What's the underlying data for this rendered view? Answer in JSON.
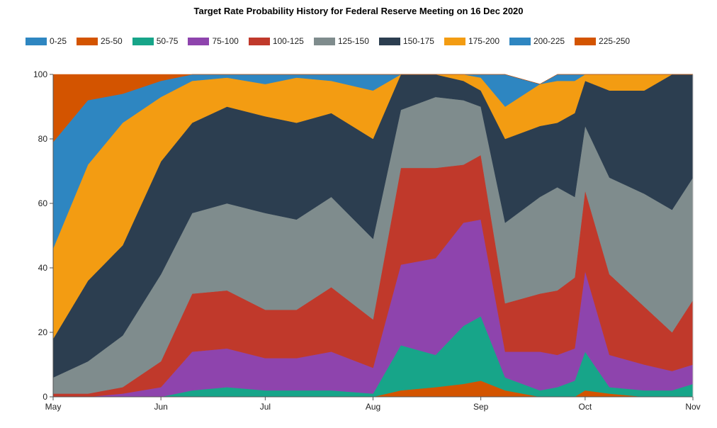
{
  "chart_data": {
    "type": "area",
    "stacked": true,
    "title": "Target Rate Probability History for Federal Reserve Meeting on 16 Dec 2020",
    "xlabel": "",
    "ylabel": "",
    "ylim": [
      0,
      100
    ],
    "yticks": [
      0,
      20,
      40,
      60,
      80,
      100
    ],
    "xticks": [
      {
        "label": "May",
        "x": 0
      },
      {
        "label": "Jun",
        "x": 31
      },
      {
        "label": "Jul",
        "x": 61
      },
      {
        "label": "Aug",
        "x": 92
      },
      {
        "label": "Sep",
        "x": 123
      },
      {
        "label": "Oct",
        "x": 153
      },
      {
        "label": "Nov",
        "x": 184
      }
    ],
    "legend_position": "top",
    "x_days": [
      0,
      10,
      20,
      31,
      40,
      50,
      61,
      70,
      80,
      92,
      100,
      110,
      118,
      123,
      130,
      140,
      145,
      150,
      153,
      160,
      170,
      178,
      184
    ],
    "series": [
      {
        "name": "0-25",
        "color": "#2e86c1",
        "values": [
          0,
          0,
          0,
          0,
          0,
          0,
          0,
          0,
          0,
          0,
          0,
          0,
          0,
          0,
          0,
          0,
          0,
          0,
          0,
          0,
          0,
          0,
          0
        ]
      },
      {
        "name": "25-50",
        "color": "#d35400",
        "values": [
          0,
          0,
          0,
          0,
          0,
          0,
          0,
          0,
          0,
          0,
          2,
          3,
          4,
          5,
          2,
          0,
          0,
          0,
          2,
          1,
          0,
          0,
          0
        ]
      },
      {
        "name": "50-75",
        "color": "#17a589",
        "values": [
          0,
          0,
          0,
          0,
          2,
          3,
          2,
          2,
          2,
          1,
          14,
          10,
          18,
          20,
          4,
          2,
          3,
          5,
          12,
          2,
          2,
          2,
          4
        ]
      },
      {
        "name": "75-100",
        "color": "#8e44ad",
        "values": [
          0,
          0,
          1,
          3,
          12,
          12,
          10,
          10,
          12,
          8,
          25,
          30,
          32,
          30,
          8,
          12,
          10,
          10,
          25,
          10,
          8,
          6,
          6
        ]
      },
      {
        "name": "100-125",
        "color": "#c0392b",
        "values": [
          1,
          1,
          2,
          8,
          18,
          18,
          15,
          15,
          20,
          15,
          30,
          28,
          18,
          20,
          15,
          18,
          20,
          22,
          25,
          25,
          18,
          12,
          20
        ]
      },
      {
        "name": "125-150",
        "color": "#7f8c8d",
        "values": [
          5,
          10,
          16,
          27,
          25,
          27,
          30,
          28,
          28,
          25,
          18,
          22,
          20,
          15,
          25,
          30,
          32,
          25,
          20,
          30,
          35,
          38,
          38
        ]
      },
      {
        "name": "150-175",
        "color": "#2c3e50",
        "values": [
          12,
          25,
          28,
          35,
          28,
          30,
          30,
          30,
          26,
          31,
          11,
          7,
          6,
          5,
          26,
          22,
          20,
          26,
          14,
          27,
          32,
          42,
          32
        ]
      },
      {
        "name": "175-200",
        "color": "#f39c12",
        "values": [
          28,
          36,
          38,
          20,
          13,
          9,
          10,
          14,
          10,
          15,
          0,
          0,
          2,
          4,
          10,
          13,
          13,
          10,
          2,
          5,
          5,
          0,
          0
        ]
      },
      {
        "name": "200-225",
        "color": "#2e86c1",
        "values": [
          33,
          20,
          9,
          5,
          2,
          1,
          3,
          1,
          2,
          5,
          0,
          0,
          0,
          1,
          10,
          0,
          2,
          2,
          0,
          0,
          0,
          0,
          0
        ]
      },
      {
        "name": "225-250",
        "color": "#d35400",
        "values": [
          21,
          8,
          6,
          2,
          0,
          0,
          0,
          0,
          0,
          0,
          0,
          0,
          0,
          0,
          0,
          0,
          0,
          0,
          0,
          0,
          0,
          0,
          0
        ]
      }
    ]
  }
}
